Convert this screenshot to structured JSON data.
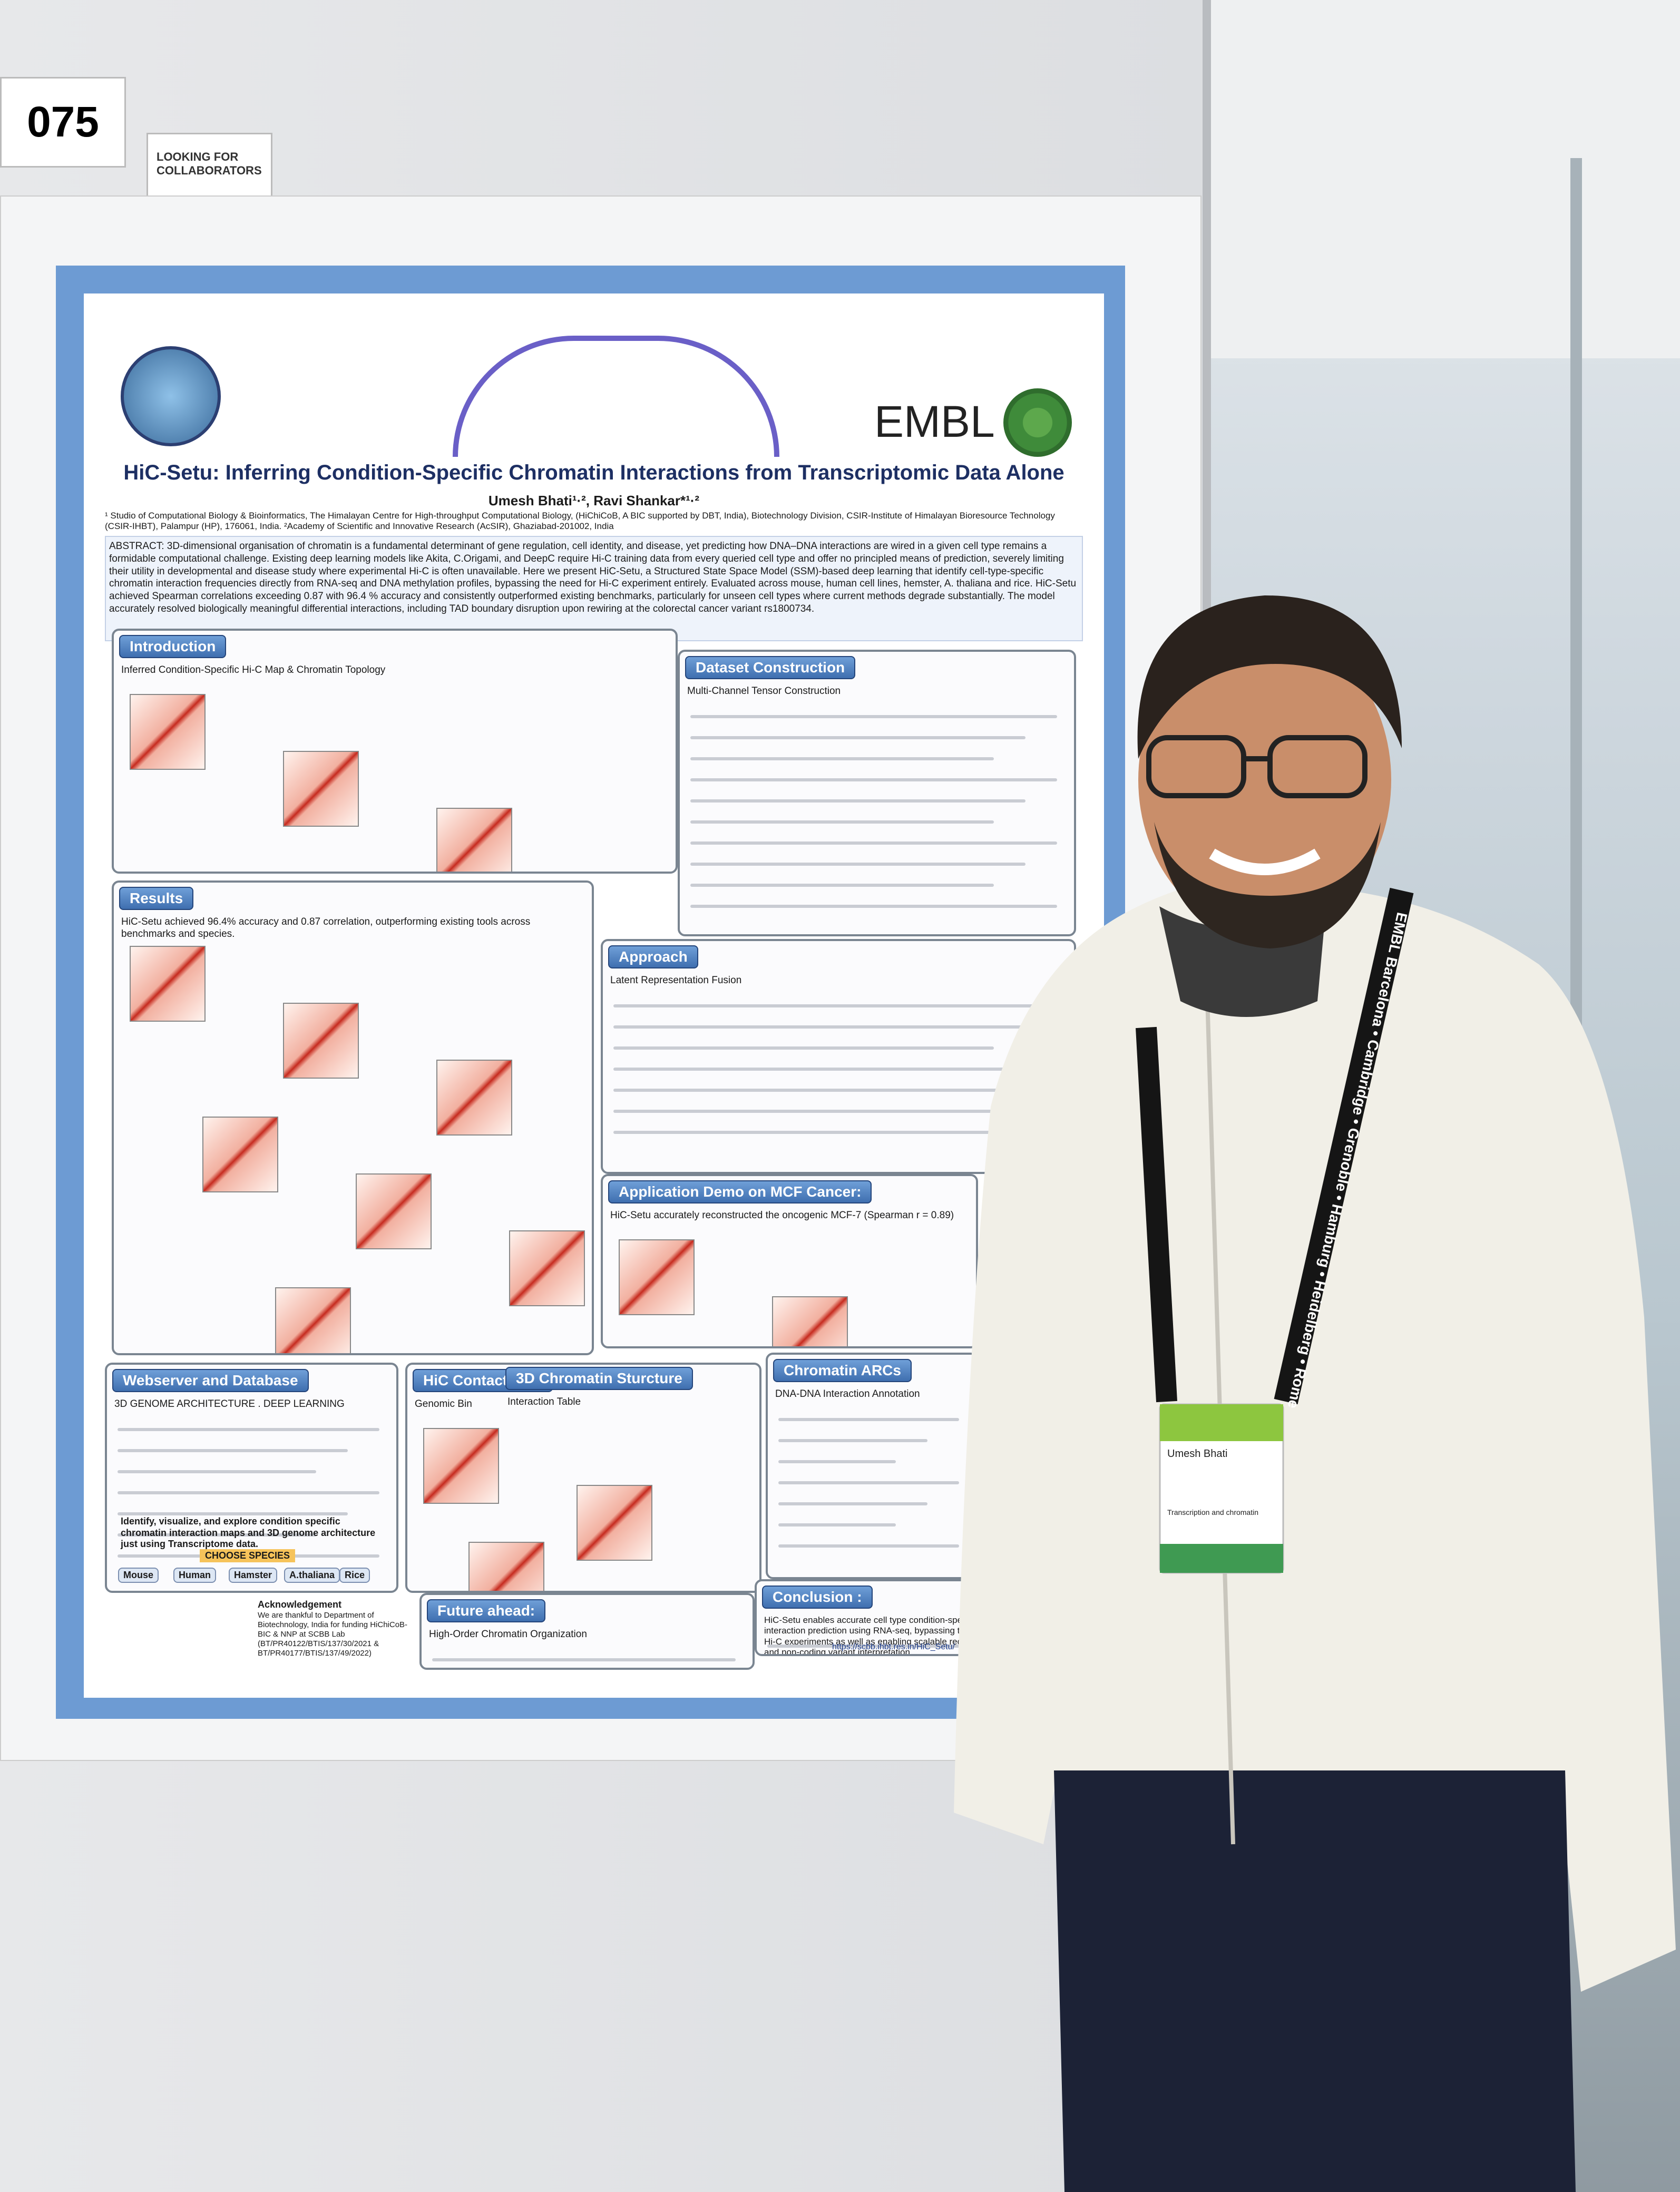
{
  "board_number": "075",
  "tag": "LOOKING FOR COLLABORATORS",
  "poster": {
    "title": "HiC-Setu: Inferring Condition-Specific Chromatin Interactions from Transcriptomic Data Alone",
    "authors": "Umesh Bhati¹·², Ravi Shankar*¹·²",
    "affiliations": "¹ Studio of Computational Biology & Bioinformatics, The Himalayan Centre for High-throughput Computational Biology, (HiChiCoB, A BIC supported by DBT, India), Biotechnology Division, CSIR-Institute of Himalayan Bioresource Technology (CSIR-IHBT), Palampur (HP), 176061, India. ²Academy of Scientific and Innovative Research (AcSIR), Ghaziabad-201002, India",
    "logo_text": "EMBL",
    "abstract": "ABSTRACT: 3D-dimensional organisation of chromatin is a fundamental determinant of gene regulation, cell identity, and disease, yet predicting how DNA–DNA interactions are wired in a given cell type remains a formidable computational challenge. Existing deep learning models like Akita, C.Origami, and DeepC require Hi-C training data from every queried cell type and offer no principled means of prediction, severely limiting their utility in developmental and disease study where experimental Hi-C is often unavailable. Here we present HiC-Setu, a Structured State Space Model (SSM)-based deep learning that identify cell-type-specific chromatin interaction frequencies directly from RNA-seq and DNA methylation profiles, bypassing the need for Hi-C experiment entirely. Evaluated across mouse, human cell lines, hemster, A. thaliana and rice. HiC-Setu achieved Spearman correlations exceeding 0.87 with 96.4 % accuracy and consistently outperformed existing benchmarks, particularly for unseen cell types where current methods degrade substantially. The model accurately resolved biologically meaningful differential interactions, including TAD boundary disruption upon rewiring at the colorectal cancer variant rs1800734.",
    "sections": [
      {
        "heading": "Introduction",
        "text": "Inferred Condition-Specific Hi-C Map & Chromatin Topology"
      },
      {
        "heading": "Dataset Construction",
        "text": "Multi-Channel Tensor Construction"
      },
      {
        "heading": "Results",
        "text": "HiC-Setu achieved 96.4% accuracy and 0.87 correlation, outperforming existing tools across benchmarks and species."
      },
      {
        "heading": "Approach",
        "text": "Latent Representation Fusion"
      },
      {
        "heading": "Application Demo on MCF Cancer:",
        "text": "HiC-Setu accurately reconstructed the oncogenic MCF-7 (Spearman r = 0.89)"
      },
      {
        "heading": "Webserver and Database",
        "text": "3D GENOME ARCHITECTURE . DEEP LEARNING"
      },
      {
        "heading": "HiC Contact map",
        "text": "Genomic Bin"
      },
      {
        "heading": "3D Chromatin Sturcture",
        "text": "Interaction Table"
      },
      {
        "heading": "Chromatin ARCs",
        "text": "DNA-DNA Interaction Annotation"
      },
      {
        "heading": "Future ahead:",
        "text": "High-Order Chromatin Organization"
      },
      {
        "heading": "Conclusion :",
        "text": "HiC-Setu enables accurate cell type condition-specific chromatin interaction prediction using RNA-seq, bypassing the need of costly Hi-C experiments as well as enabling scalable regulatory genomics and non-coding variant interpretation."
      }
    ],
    "webserver_caption": "Identify, visualize, and explore condition specific chromatin interaction maps and 3D genome architecture just using Transcriptome data.",
    "species_heading": "CHOOSE SPECIES",
    "species": [
      "Mouse",
      "Human",
      "Hamster",
      "A.thaliana",
      "Rice"
    ],
    "acknowledgement_heading": "Acknowledgement",
    "acknowledgement": "We are thankful to Department of Biotechnology, India for funding HiChiCoB-BIC & NNP at SCBB Lab (BT/PR40122/BTIS/137/30/2021 & BT/PR40177/BTIS/137/49/2022)",
    "url": "https://scbb.ihbt.res.in/HiC_Setu/"
  },
  "lanyard": "EMBL  Barcelona • Cambridge • Grenoble • Hamburg • Heidelberg • Rome",
  "badge": {
    "name": "Umesh Bhati",
    "topic": "Transcription and chromatin"
  }
}
